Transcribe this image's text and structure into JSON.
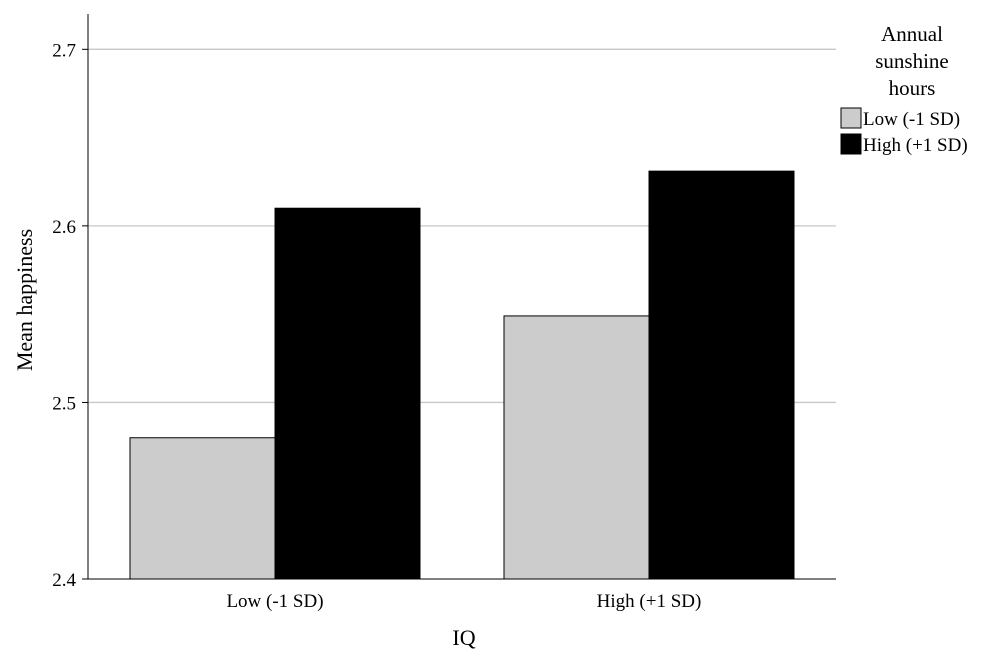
{
  "chart_data": {
    "type": "bar",
    "categories": [
      "Low (-1 SD)",
      "High (+1 SD)"
    ],
    "series": [
      {
        "name": "Low (-1 SD)",
        "values": [
          2.48,
          2.549
        ],
        "color": "#cccccc"
      },
      {
        "name": "High (+1 SD)",
        "values": [
          2.61,
          2.631
        ],
        "color": "#000000"
      }
    ],
    "title": "",
    "xlabel": "IQ",
    "ylabel": "Mean happiness",
    "ylim": [
      2.4,
      2.72
    ],
    "yticks": [
      "2.4",
      "2.5",
      "2.6",
      "2.7"
    ],
    "grid": true,
    "legend": {
      "title_lines": [
        "Annual",
        "sunshine",
        "hours"
      ],
      "placement": "top-right"
    }
  }
}
